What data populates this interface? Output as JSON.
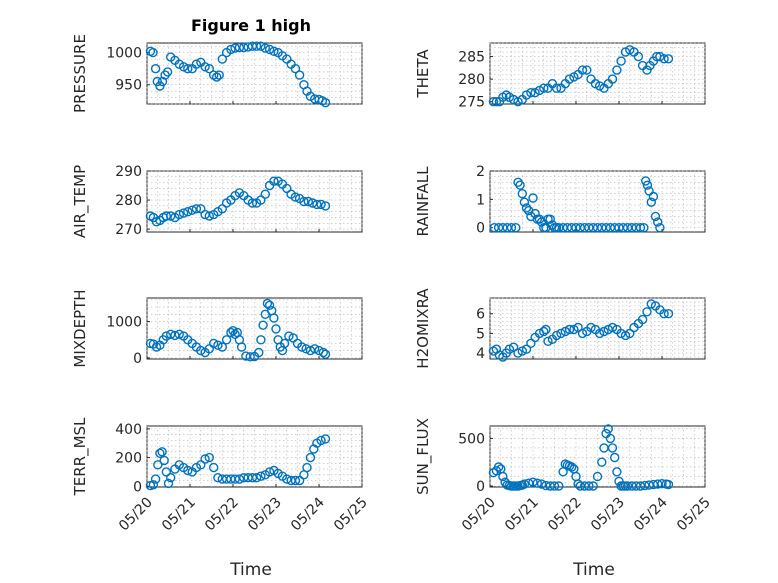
{
  "figure": {
    "title": "Figure 1 high",
    "xlabel": "Time",
    "x_ticks": [
      "05/20",
      "05/21",
      "05/22",
      "05/23",
      "05/24",
      "05/25"
    ],
    "marker_color": "#0072BD"
  },
  "chart_data": [
    {
      "type": "scatter",
      "ylabel": "PRESSURE",
      "ylim": [
        920,
        1015
      ],
      "yticks": [
        950,
        1000
      ],
      "xlim": [
        0,
        5
      ],
      "grid": true,
      "marker": "o",
      "x": [
        0.08,
        0.14,
        0.2,
        0.24,
        0.3,
        0.36,
        0.42,
        0.48,
        0.55,
        0.65,
        0.75,
        0.85,
        0.95,
        1.05,
        1.15,
        1.25,
        1.35,
        1.45,
        1.55,
        1.62,
        1.68,
        1.75,
        1.85,
        1.95,
        2.05,
        2.15,
        2.25,
        2.35,
        2.45,
        2.55,
        2.65,
        2.75,
        2.85,
        2.95,
        3.05,
        3.15,
        3.25,
        3.35,
        3.45,
        3.55,
        3.65,
        3.72,
        3.8,
        3.9,
        4.0,
        4.08,
        4.15
      ],
      "y": [
        1002,
        1000,
        975,
        955,
        948,
        955,
        965,
        970,
        993,
        988,
        982,
        978,
        975,
        975,
        982,
        985,
        978,
        975,
        965,
        962,
        965,
        990,
        1000,
        1005,
        1007,
        1008,
        1008,
        1009,
        1010,
        1010,
        1010,
        1007,
        1005,
        1002,
        1000,
        995,
        990,
        982,
        975,
        965,
        950,
        940,
        932,
        928,
        927,
        925,
        922
      ]
    },
    {
      "type": "scatter",
      "ylabel": "THETA",
      "ylim": [
        274.5,
        288
      ],
      "yticks": [
        275,
        280,
        285
      ],
      "xlim": [
        0,
        5
      ],
      "grid": true,
      "marker": "o",
      "x": [
        0.08,
        0.15,
        0.22,
        0.3,
        0.38,
        0.45,
        0.55,
        0.65,
        0.75,
        0.85,
        0.95,
        1.05,
        1.15,
        1.25,
        1.35,
        1.45,
        1.55,
        1.65,
        1.75,
        1.85,
        1.95,
        2.05,
        2.15,
        2.25,
        2.35,
        2.45,
        2.55,
        2.65,
        2.75,
        2.85,
        2.95,
        3.05,
        3.15,
        3.25,
        3.35,
        3.45,
        3.55,
        3.65,
        3.72,
        3.8,
        3.88,
        3.95,
        4.05,
        4.15
      ],
      "y": [
        275,
        275,
        275,
        276,
        276.5,
        276,
        275.5,
        275,
        275.5,
        276.5,
        277,
        277,
        277.5,
        278,
        278,
        279,
        278,
        278,
        279,
        280,
        280.5,
        281,
        282,
        282,
        280,
        279,
        278.5,
        278,
        279,
        280,
        282,
        284,
        286,
        286.5,
        286,
        285,
        283,
        282,
        283,
        284,
        285,
        285,
        284.5,
        284.5
      ]
    },
    {
      "type": "scatter",
      "ylabel": "AIR_TEMP",
      "ylim": [
        269,
        290
      ],
      "yticks": [
        270,
        280,
        290
      ],
      "xlim": [
        0,
        5
      ],
      "grid": true,
      "marker": "o",
      "x": [
        0.08,
        0.15,
        0.22,
        0.3,
        0.38,
        0.45,
        0.55,
        0.65,
        0.75,
        0.85,
        0.95,
        1.05,
        1.15,
        1.25,
        1.35,
        1.45,
        1.55,
        1.65,
        1.75,
        1.85,
        1.95,
        2.05,
        2.15,
        2.25,
        2.35,
        2.45,
        2.55,
        2.65,
        2.75,
        2.85,
        2.95,
        3.05,
        3.15,
        3.25,
        3.35,
        3.45,
        3.55,
        3.65,
        3.75,
        3.85,
        3.95,
        4.05,
        4.15
      ],
      "y": [
        274.5,
        274,
        272.5,
        273,
        274,
        274.5,
        274.5,
        274,
        275,
        275.5,
        276,
        276.5,
        277,
        277,
        275,
        274.5,
        275,
        276,
        277,
        279,
        280,
        281.5,
        282.5,
        281.5,
        280,
        279,
        279,
        280,
        282,
        285,
        286.5,
        286.5,
        285.5,
        284,
        282,
        281,
        280.5,
        279.5,
        279.5,
        279,
        278.5,
        278.5,
        278
      ]
    },
    {
      "type": "scatter",
      "ylabel": "RAINFALL",
      "ylim": [
        -0.15,
        2
      ],
      "yticks": [
        0,
        1,
        2
      ],
      "xlim": [
        0,
        5
      ],
      "grid": true,
      "marker": "o",
      "x": [
        0.1,
        0.2,
        0.3,
        0.4,
        0.5,
        0.6,
        0.65,
        0.7,
        0.75,
        0.8,
        0.85,
        0.9,
        0.95,
        1.0,
        1.05,
        1.1,
        1.15,
        1.2,
        1.25,
        1.3,
        1.35,
        1.4,
        1.45,
        1.5,
        1.55,
        1.6,
        1.7,
        1.8,
        1.9,
        2.0,
        2.1,
        2.2,
        2.3,
        2.4,
        2.5,
        2.6,
        2.7,
        2.8,
        2.9,
        3.0,
        3.1,
        3.2,
        3.3,
        3.4,
        3.5,
        3.58,
        3.62,
        3.66,
        3.7,
        3.75,
        3.8,
        3.85,
        3.9,
        3.95
      ],
      "y": [
        0,
        0,
        0,
        0,
        0,
        0,
        1.6,
        1.5,
        1.2,
        0.9,
        0.7,
        0.6,
        0.4,
        1.05,
        0.5,
        0.3,
        0.3,
        0.2,
        0,
        0,
        0.3,
        0.3,
        0.1,
        0,
        0,
        0,
        0,
        0,
        0,
        0,
        0,
        0,
        0,
        0,
        0,
        0,
        0,
        0,
        0,
        0,
        0,
        0,
        0,
        0,
        0,
        0,
        1.65,
        1.5,
        1.3,
        0.9,
        1.1,
        0.4,
        0.2,
        0
      ]
    },
    {
      "type": "scatter",
      "ylabel": "MIXDEPTH",
      "ylim": [
        -30,
        1650
      ],
      "yticks": [
        0,
        1000
      ],
      "xlim": [
        0,
        5
      ],
      "grid": true,
      "marker": "o",
      "x": [
        0.08,
        0.15,
        0.22,
        0.3,
        0.38,
        0.45,
        0.55,
        0.65,
        0.75,
        0.85,
        0.95,
        1.05,
        1.15,
        1.25,
        1.35,
        1.45,
        1.55,
        1.65,
        1.75,
        1.85,
        1.95,
        2.0,
        2.05,
        2.1,
        2.15,
        2.2,
        2.3,
        2.4,
        2.5,
        2.6,
        2.65,
        2.7,
        2.75,
        2.8,
        2.85,
        2.9,
        2.95,
        3.0,
        3.05,
        3.1,
        3.15,
        3.2,
        3.3,
        3.4,
        3.5,
        3.6,
        3.7,
        3.8,
        3.9,
        4.0,
        4.1,
        4.15
      ],
      "y": [
        400,
        380,
        300,
        350,
        500,
        600,
        650,
        620,
        650,
        600,
        500,
        400,
        300,
        200,
        150,
        250,
        400,
        350,
        300,
        500,
        700,
        750,
        650,
        700,
        500,
        300,
        50,
        30,
        40,
        150,
        500,
        900,
        1200,
        1500,
        1450,
        1300,
        1100,
        800,
        500,
        300,
        200,
        400,
        600,
        550,
        400,
        300,
        250,
        200,
        250,
        200,
        150,
        100
      ]
    },
    {
      "type": "scatter",
      "ylabel": "H2OMIXRA",
      "ylim": [
        3.7,
        6.8
      ],
      "yticks": [
        4,
        5,
        6
      ],
      "xlim": [
        0,
        5
      ],
      "grid": true,
      "marker": "o",
      "x": [
        0.08,
        0.15,
        0.22,
        0.3,
        0.38,
        0.45,
        0.55,
        0.65,
        0.75,
        0.85,
        0.95,
        1.05,
        1.15,
        1.25,
        1.3,
        1.35,
        1.45,
        1.55,
        1.65,
        1.75,
        1.85,
        1.95,
        2.05,
        2.15,
        2.25,
        2.35,
        2.45,
        2.55,
        2.65,
        2.75,
        2.85,
        2.95,
        3.05,
        3.15,
        3.25,
        3.35,
        3.45,
        3.55,
        3.65,
        3.75,
        3.85,
        3.95,
        4.05,
        4.15
      ],
      "y": [
        4.1,
        4.2,
        3.9,
        3.8,
        4.0,
        4.2,
        4.3,
        4.0,
        4.1,
        4.2,
        4.5,
        4.8,
        5.0,
        5.1,
        5.2,
        4.6,
        4.7,
        4.9,
        5.0,
        5.1,
        5.2,
        5.2,
        5.3,
        5.0,
        5.1,
        5.3,
        5.2,
        5.0,
        5.1,
        5.2,
        5.3,
        5.2,
        5.0,
        4.9,
        5.0,
        5.3,
        5.5,
        5.7,
        6.1,
        6.5,
        6.4,
        6.2,
        6.0,
        6.0
      ]
    },
    {
      "type": "scatter",
      "ylabel": "TERR_MSL",
      "ylim": [
        -5,
        420
      ],
      "yticks": [
        0,
        200,
        400
      ],
      "xlim": [
        0,
        5
      ],
      "grid": true,
      "marker": "o",
      "x": [
        0.08,
        0.15,
        0.2,
        0.25,
        0.3,
        0.35,
        0.4,
        0.45,
        0.5,
        0.55,
        0.65,
        0.75,
        0.85,
        0.95,
        1.05,
        1.15,
        1.25,
        1.35,
        1.45,
        1.55,
        1.65,
        1.75,
        1.85,
        1.95,
        2.05,
        2.15,
        2.25,
        2.35,
        2.45,
        2.55,
        2.65,
        2.75,
        2.85,
        2.95,
        3.05,
        3.15,
        3.25,
        3.35,
        3.45,
        3.55,
        3.65,
        3.72,
        3.8,
        3.88,
        3.95,
        4.05,
        4.15
      ],
      "y": [
        5,
        10,
        50,
        150,
        230,
        240,
        180,
        100,
        20,
        60,
        120,
        150,
        130,
        110,
        100,
        130,
        150,
        190,
        200,
        130,
        60,
        50,
        50,
        50,
        50,
        50,
        60,
        60,
        60,
        60,
        70,
        80,
        100,
        110,
        90,
        70,
        50,
        40,
        40,
        40,
        80,
        130,
        200,
        260,
        300,
        320,
        330
      ]
    },
    {
      "type": "scatter",
      "ylabel": "SUN_FLUX",
      "ylim": [
        -10,
        630
      ],
      "yticks": [
        0,
        500
      ],
      "xlim": [
        0,
        5
      ],
      "grid": true,
      "marker": "o",
      "x": [
        0.08,
        0.15,
        0.2,
        0.25,
        0.3,
        0.35,
        0.4,
        0.45,
        0.5,
        0.55,
        0.6,
        0.65,
        0.7,
        0.75,
        0.8,
        0.9,
        1.0,
        1.1,
        1.2,
        1.3,
        1.4,
        1.5,
        1.6,
        1.7,
        1.75,
        1.8,
        1.85,
        1.9,
        1.95,
        2.0,
        2.05,
        2.1,
        2.2,
        2.3,
        2.4,
        2.5,
        2.6,
        2.65,
        2.7,
        2.75,
        2.8,
        2.85,
        2.9,
        2.95,
        3.0,
        3.05,
        3.1,
        3.15,
        3.2,
        3.3,
        3.4,
        3.5,
        3.6,
        3.7,
        3.8,
        3.9,
        4.0,
        4.1,
        4.15
      ],
      "y": [
        140,
        160,
        200,
        180,
        100,
        40,
        10,
        5,
        0,
        0,
        0,
        0,
        5,
        10,
        20,
        30,
        40,
        30,
        20,
        5,
        0,
        0,
        0,
        150,
        230,
        220,
        210,
        200,
        180,
        100,
        20,
        0,
        0,
        0,
        0,
        100,
        250,
        400,
        550,
        600,
        500,
        400,
        300,
        150,
        50,
        0,
        0,
        0,
        0,
        0,
        0,
        0,
        5,
        10,
        15,
        20,
        25,
        20,
        15
      ]
    }
  ]
}
